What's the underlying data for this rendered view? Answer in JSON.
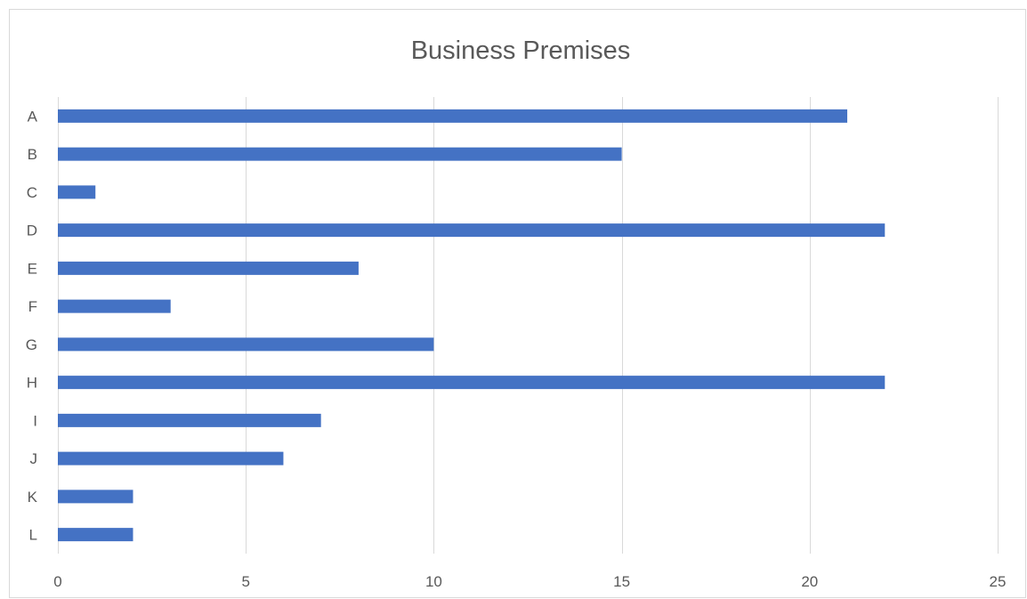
{
  "chart_data": {
    "type": "bar",
    "orientation": "horizontal",
    "title": "Business Premises",
    "xlabel": "",
    "ylabel": "",
    "categories": [
      "A",
      "B",
      "C",
      "D",
      "E",
      "F",
      "G",
      "H",
      "I",
      "J",
      "K",
      "L"
    ],
    "values": [
      21,
      15,
      1,
      22,
      8,
      3,
      10,
      22,
      7,
      6,
      2,
      2
    ],
    "xlim": [
      0,
      25
    ],
    "x_ticks": [
      0,
      5,
      10,
      15,
      20,
      25
    ],
    "grid": "vertical",
    "legend": "none",
    "bar_color": "#4472c4"
  }
}
